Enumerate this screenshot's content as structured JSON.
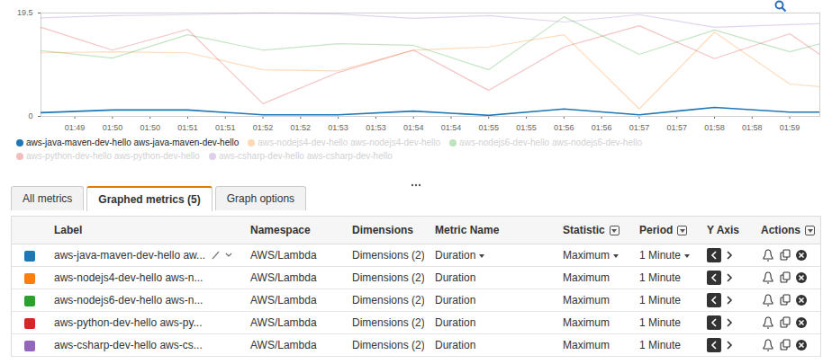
{
  "chart_data": {
    "type": "line",
    "x": [
      109.05,
      110,
      111,
      112,
      113,
      114,
      115,
      116,
      117,
      118,
      119,
      119.4
    ],
    "xlim": [
      109.05,
      119.4
    ],
    "xticks": [
      {
        "value": 109.5,
        "label": "01:49"
      },
      {
        "value": 110,
        "label": "01:50"
      },
      {
        "value": 110.5,
        "label": "01:50"
      },
      {
        "value": 111,
        "label": "01:51"
      },
      {
        "value": 111.5,
        "label": "01:51"
      },
      {
        "value": 112,
        "label": "01:52"
      },
      {
        "value": 112.5,
        "label": "01:52"
      },
      {
        "value": 113,
        "label": "01:53"
      },
      {
        "value": 113.5,
        "label": "01:53"
      },
      {
        "value": 114,
        "label": "01:54"
      },
      {
        "value": 114.5,
        "label": "01:54"
      },
      {
        "value": 115,
        "label": "01:55"
      },
      {
        "value": 115.5,
        "label": "01:55"
      },
      {
        "value": 116,
        "label": "01:56"
      },
      {
        "value": 116.5,
        "label": "01:56"
      },
      {
        "value": 117,
        "label": "01:57"
      },
      {
        "value": 117.5,
        "label": "01:57"
      },
      {
        "value": 118,
        "label": "01:58"
      },
      {
        "value": 118.5,
        "label": "01:58"
      },
      {
        "value": 119,
        "label": "01:59"
      }
    ],
    "ylim": [
      0,
      19.5
    ],
    "yticks": [
      0,
      19.5
    ],
    "grid": false,
    "legend": "bottom",
    "series": [
      {
        "name": "aws-java-maven-dev-hello aws-java-maven-dev-hello",
        "color": "#1f77b4",
        "values": [
          0.7,
          1.2,
          1.2,
          0.3,
          0.3,
          1.0,
          0.2,
          1.4,
          0.3,
          1.7,
          0.8,
          0.8
        ]
      },
      {
        "name": "aws-nodejs4-dev-hello aws-nodejs4-dev-hello",
        "color": "#ff7f0e",
        "values": [
          12.0,
          12.2,
          12.0,
          8.8,
          8.6,
          12.5,
          13.1,
          15.4,
          1.4,
          15.9,
          6.1,
          5.6
        ]
      },
      {
        "name": "aws-nodejs6-dev-hello aws-nodejs6-dev-hello",
        "color": "#2ca02c",
        "values": [
          12.4,
          11.0,
          15.4,
          12.5,
          13.7,
          13.4,
          8.8,
          18.8,
          11.7,
          16.3,
          12.2,
          13.7
        ]
      },
      {
        "name": "aws-python-dev-hello aws-python-dev-hello",
        "color": "#d62728",
        "values": [
          16.8,
          12.5,
          16.4,
          2.4,
          8.3,
          12.5,
          4.9,
          13.1,
          17.1,
          10.9,
          15.6,
          11.7
        ]
      },
      {
        "name": "aws-csharp-dev-hello aws-csharp-dev-hello",
        "color": "#9467bd",
        "values": [
          18.6,
          19.0,
          19.2,
          19.5,
          19.3,
          18.5,
          19.0,
          17.8,
          19.2,
          16.8,
          17.3,
          17.5
        ]
      }
    ]
  },
  "tabs": [
    {
      "label": "All metrics",
      "active": false
    },
    {
      "label": "Graphed metrics (5)",
      "active": true
    },
    {
      "label": "Graph options",
      "active": false
    }
  ],
  "table": {
    "columns": [
      "Label",
      "Namespace",
      "Dimensions",
      "Metric Name",
      "Statistic",
      "Period",
      "Y Axis",
      "Actions"
    ],
    "row_colors": [
      "#1f77b4",
      "#ff7f0e",
      "#2ca02c",
      "#d62728",
      "#9467bd"
    ],
    "rows": [
      [
        "aws-java-maven-dev-hello aw...",
        "AWS/Lambda",
        "Dimensions (2)",
        "Duration",
        "Maximum",
        "1 Minute"
      ],
      [
        "aws-nodejs4-dev-hello aws-n...",
        "AWS/Lambda",
        "Dimensions (2)",
        "Duration",
        "Maximum",
        "1 Minute"
      ],
      [
        "aws-nodejs6-dev-hello aws-n...",
        "AWS/Lambda",
        "Dimensions (2)",
        "Duration",
        "Maximum",
        "1 Minute"
      ],
      [
        "aws-python-dev-hello aws-py...",
        "AWS/Lambda",
        "Dimensions (2)",
        "Duration",
        "Maximum",
        "1 Minute"
      ],
      [
        "aws-csharp-dev-hello aws-cs...",
        "AWS/Lambda",
        "Dimensions (2)",
        "Duration",
        "Maximum",
        "1 Minute"
      ]
    ]
  }
}
